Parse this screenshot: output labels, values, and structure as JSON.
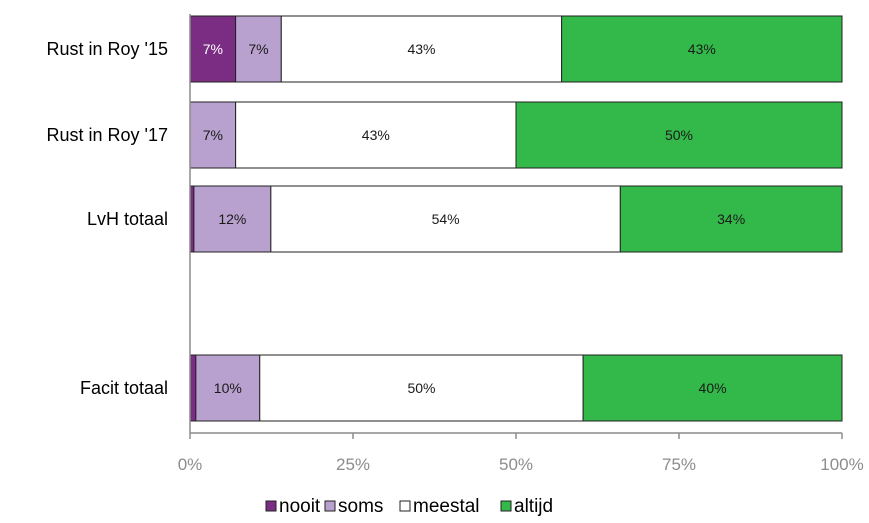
{
  "chart_data": {
    "type": "bar",
    "orientation": "horizontal",
    "stacked": true,
    "percent": true,
    "categories": [
      "Rust in Roy '15",
      "Rust in Roy '17",
      "LvH totaal",
      "Facit totaal"
    ],
    "gap_before_last_category": true,
    "series": [
      {
        "name": "nooit",
        "color": "#7b2c83",
        "values": [
          7,
          0,
          0.6,
          0.9
        ],
        "labels": [
          "7%",
          "",
          "",
          ""
        ]
      },
      {
        "name": "soms",
        "color": "#b9a1cf",
        "values": [
          7,
          7,
          11.8,
          9.8
        ],
        "labels": [
          "7%",
          "7%",
          "12%",
          "10%"
        ]
      },
      {
        "name": "meestal",
        "color": "#ffffff",
        "values": [
          43,
          43,
          53.6,
          49.6
        ],
        "labels": [
          "43%",
          "43%",
          "54%",
          "50%"
        ]
      },
      {
        "name": "altijd",
        "color": "#33b94a",
        "values": [
          43,
          50,
          34,
          39.7
        ],
        "labels": [
          "43%",
          "50%",
          "34%",
          "40%"
        ]
      }
    ],
    "xlim": [
      0,
      100
    ],
    "x_ticks": [
      "0%",
      "25%",
      "50%",
      "75%",
      "100%"
    ],
    "legend_position": "bottom",
    "grid": false,
    "title": "",
    "xlabel": "",
    "ylabel": ""
  }
}
